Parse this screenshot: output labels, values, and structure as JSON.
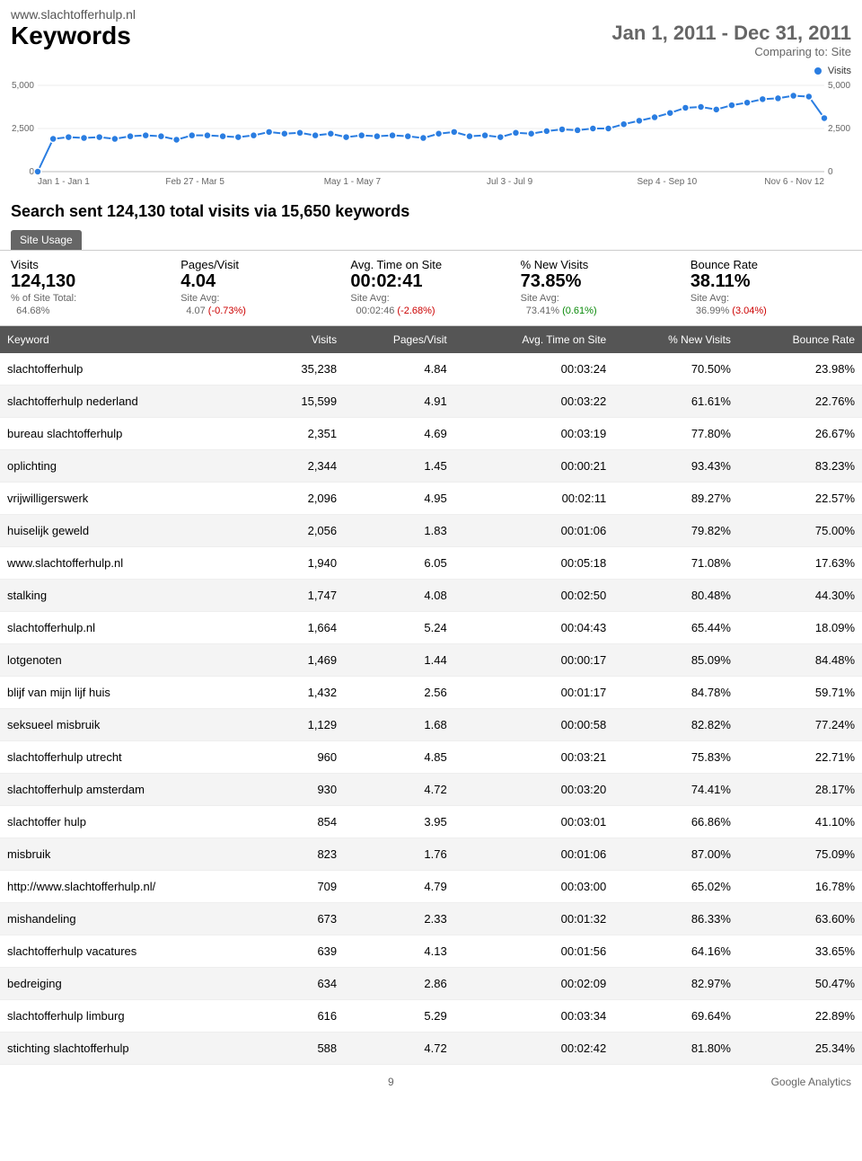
{
  "header": {
    "site_url": "www.slachtofferhulp.nl",
    "title": "Keywords",
    "date_range": "Jan 1, 2011 - Dec 31, 2011",
    "compare_label": "Comparing to: Site"
  },
  "legend": {
    "label": "Visits",
    "color": "#2a7de1"
  },
  "chart": {
    "type": "line",
    "ylim": [
      0,
      5000
    ],
    "yticks": [
      0,
      2500,
      5000
    ],
    "xlabels": [
      "Jan 1 - Jan 1",
      "Feb 27 - Mar 5",
      "May 1 - May 7",
      "Jul 3 - Jul 9",
      "Sep 4 - Sep 10",
      "Nov 6 - Nov 12"
    ],
    "line_color": "#2a7de1",
    "marker_color": "#2a7de1",
    "marker_stroke": "#fff",
    "marker_radius": 4,
    "line_width": 2,
    "grid_color": "#eee",
    "baseline_color": "#ddd",
    "background_color": "#fff",
    "values": [
      0,
      1900,
      2000,
      1950,
      2000,
      1900,
      2050,
      2100,
      2050,
      1850,
      2100,
      2100,
      2050,
      2000,
      2100,
      2300,
      2200,
      2250,
      2100,
      2200,
      2000,
      2100,
      2050,
      2100,
      2050,
      1950,
      2200,
      2300,
      2050,
      2100,
      2000,
      2250,
      2200,
      2350,
      2450,
      2400,
      2500,
      2500,
      2750,
      2950,
      3150,
      3400,
      3700,
      3750,
      3600,
      3850,
      4000,
      4200,
      4250,
      4400,
      4350,
      3100
    ]
  },
  "summary_line": "Search sent 124,130 total visits via 15,650 keywords",
  "tab": "Site Usage",
  "metrics": [
    {
      "label": "Visits",
      "value": "124,130",
      "sub_label": "% of Site Total:",
      "sub_value": "64.68%",
      "change": "",
      "change_sign": ""
    },
    {
      "label": "Pages/Visit",
      "value": "4.04",
      "sub_label": "Site Avg:",
      "sub_value": "4.07",
      "change": "(-0.73%)",
      "change_sign": "neg"
    },
    {
      "label": "Avg. Time on Site",
      "value": "00:02:41",
      "sub_label": "Site Avg:",
      "sub_value": "00:02:46",
      "change": "(-2.68%)",
      "change_sign": "neg"
    },
    {
      "label": "% New Visits",
      "value": "73.85%",
      "sub_label": "Site Avg:",
      "sub_value": "73.41%",
      "change": "(0.61%)",
      "change_sign": "pos"
    },
    {
      "label": "Bounce Rate",
      "value": "38.11%",
      "sub_label": "Site Avg:",
      "sub_value": "36.99%",
      "change": "(3.04%)",
      "change_sign": "neg"
    }
  ],
  "table": {
    "columns": [
      "Keyword",
      "Visits",
      "Pages/Visit",
      "Avg. Time on Site",
      "% New Visits",
      "Bounce Rate"
    ],
    "rows": [
      [
        "slachtofferhulp",
        "35,238",
        "4.84",
        "00:03:24",
        "70.50%",
        "23.98%"
      ],
      [
        "slachtofferhulp nederland",
        "15,599",
        "4.91",
        "00:03:22",
        "61.61%",
        "22.76%"
      ],
      [
        "bureau slachtofferhulp",
        "2,351",
        "4.69",
        "00:03:19",
        "77.80%",
        "26.67%"
      ],
      [
        "oplichting",
        "2,344",
        "1.45",
        "00:00:21",
        "93.43%",
        "83.23%"
      ],
      [
        "vrijwilligerswerk",
        "2,096",
        "4.95",
        "00:02:11",
        "89.27%",
        "22.57%"
      ],
      [
        "huiselijk geweld",
        "2,056",
        "1.83",
        "00:01:06",
        "79.82%",
        "75.00%"
      ],
      [
        "www.slachtofferhulp.nl",
        "1,940",
        "6.05",
        "00:05:18",
        "71.08%",
        "17.63%"
      ],
      [
        "stalking",
        "1,747",
        "4.08",
        "00:02:50",
        "80.48%",
        "44.30%"
      ],
      [
        "slachtofferhulp.nl",
        "1,664",
        "5.24",
        "00:04:43",
        "65.44%",
        "18.09%"
      ],
      [
        "lotgenoten",
        "1,469",
        "1.44",
        "00:00:17",
        "85.09%",
        "84.48%"
      ],
      [
        "blijf van mijn lijf huis",
        "1,432",
        "2.56",
        "00:01:17",
        "84.78%",
        "59.71%"
      ],
      [
        "seksueel misbruik",
        "1,129",
        "1.68",
        "00:00:58",
        "82.82%",
        "77.24%"
      ],
      [
        "slachtofferhulp utrecht",
        "960",
        "4.85",
        "00:03:21",
        "75.83%",
        "22.71%"
      ],
      [
        "slachtofferhulp amsterdam",
        "930",
        "4.72",
        "00:03:20",
        "74.41%",
        "28.17%"
      ],
      [
        "slachtoffer hulp",
        "854",
        "3.95",
        "00:03:01",
        "66.86%",
        "41.10%"
      ],
      [
        "misbruik",
        "823",
        "1.76",
        "00:01:06",
        "87.00%",
        "75.09%"
      ],
      [
        "http://www.slachtofferhulp.nl/",
        "709",
        "4.79",
        "00:03:00",
        "65.02%",
        "16.78%"
      ],
      [
        "mishandeling",
        "673",
        "2.33",
        "00:01:32",
        "86.33%",
        "63.60%"
      ],
      [
        "slachtofferhulp vacatures",
        "639",
        "4.13",
        "00:01:56",
        "64.16%",
        "33.65%"
      ],
      [
        "bedreiging",
        "634",
        "2.86",
        "00:02:09",
        "82.97%",
        "50.47%"
      ],
      [
        "slachtofferhulp limburg",
        "616",
        "5.29",
        "00:03:34",
        "69.64%",
        "22.89%"
      ],
      [
        "stichting slachtofferhulp",
        "588",
        "4.72",
        "00:02:42",
        "81.80%",
        "25.34%"
      ]
    ]
  },
  "footer": {
    "page": "9",
    "brand": "Google Analytics"
  }
}
